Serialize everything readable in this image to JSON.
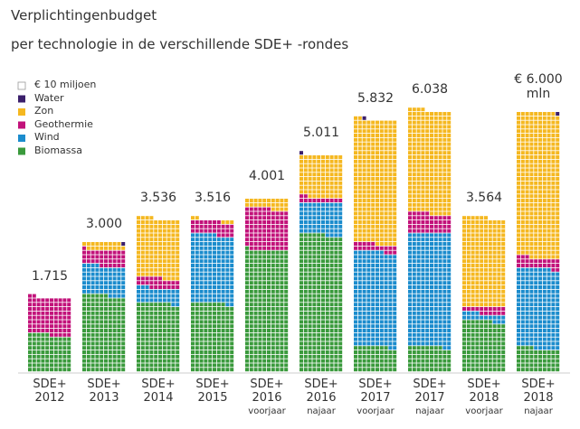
{
  "chart_data": {
    "type": "waffle",
    "title": "Verplichtingenbudget",
    "subtitle": "per technologie in de verschillende SDE+ -rondes",
    "unit_label": "€ 10 miljoen",
    "unit": 10,
    "columns_per_bar": 10,
    "categories": [
      "SDE+ 2012",
      "SDE+ 2013",
      "SDE+ 2014",
      "SDE+ 2015",
      "SDE+ 2016",
      "SDE+ 2016",
      "SDE+ 2017",
      "SDE+ 2017",
      "SDE+ 2018",
      "SDE+ 2018"
    ],
    "category_notes": [
      null,
      null,
      null,
      null,
      "voorjaar",
      "najaar",
      "voorjaar",
      "najaar",
      "voorjaar",
      "najaar"
    ],
    "totals": [
      1715,
      3000,
      3536,
      3516,
      4001,
      5011,
      5832,
      6038,
      3564,
      6000
    ],
    "total_labels": [
      "1.715",
      "3.000",
      "3.536",
      "3.516",
      "4.001",
      "5.011",
      "5.832",
      "6.038",
      "3.564",
      "€ 6.000 mln"
    ],
    "series": [
      {
        "name": "Biomassa",
        "color": "#3a9a3c",
        "values": [
          850,
          1760,
          1580,
          1580,
          2810,
          3160,
          575,
          575,
          1170,
          535
        ]
      },
      {
        "name": "Wind",
        "color": "#1b8ccd",
        "values": [
          0,
          680,
          350,
          1580,
          0,
          740,
          2190,
          2620,
          165,
          1845
        ]
      },
      {
        "name": "Geothermie",
        "color": "#c2127a",
        "values": [
          865,
          370,
          225,
          310,
          945,
          120,
          185,
          450,
          165,
          245
        ]
      },
      {
        "name": "Zon",
        "color": "#f5b820",
        "values": [
          0,
          180,
          1381,
          46,
          246,
          981,
          2872,
          2393,
          2064,
          3365
        ]
      },
      {
        "name": "Water",
        "color": "#3b1f6b",
        "values": [
          0,
          10,
          0,
          0,
          0,
          10,
          10,
          0,
          0,
          10
        ]
      }
    ]
  }
}
